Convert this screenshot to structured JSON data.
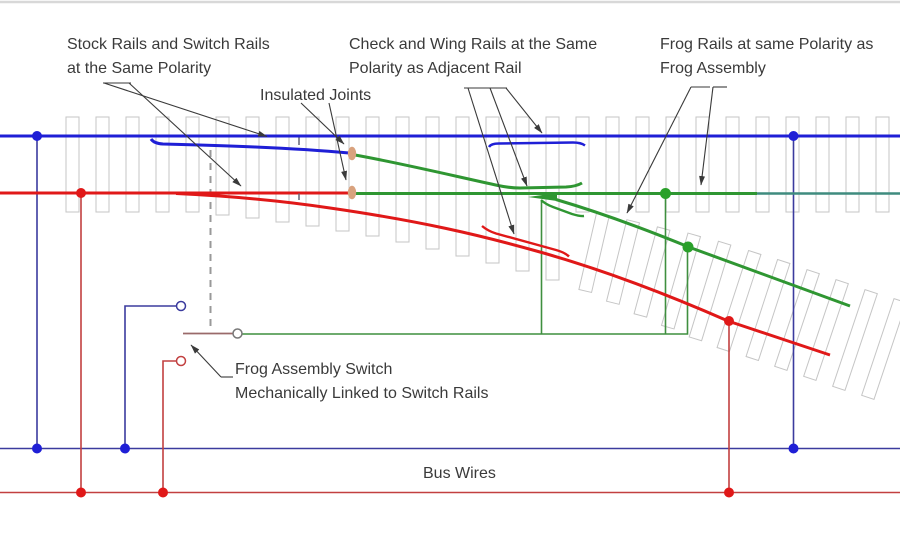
{
  "diagram": {
    "labels": {
      "stock_rails": {
        "line1": "Stock Rails and Switch Rails",
        "line2": "at the Same Polarity"
      },
      "insulated_joints": {
        "line1": "Insulated Joints"
      },
      "check_wing": {
        "line1": "Check and Wing Rails at the Same",
        "line2": "Polarity as Adjacent Rail"
      },
      "frog_rails": {
        "line1": "Frog Rails at same Polarity as",
        "line2": "Frog Assembly"
      },
      "frog_switch": {
        "line1": "Frog Assembly Switch",
        "line2": "Mechanically Linked to Switch Rails"
      },
      "bus_wires": {
        "line1": "Bus Wires"
      }
    },
    "colors": {
      "ink": "#3a3a3a",
      "rail_blue": "#1f1fd6",
      "rail_red": "#e01818",
      "rail_green": "#2f9632",
      "rail_teal": "#3f8b7f",
      "dot_green": "#2aa02a",
      "wire_blue": "#3b3b9e",
      "wire_red": "#c24040",
      "wire_green": "#3f8f3f",
      "joint": "#d9a27e",
      "tie": "#c5c5c5",
      "lever": "#9a6a6a"
    }
  }
}
